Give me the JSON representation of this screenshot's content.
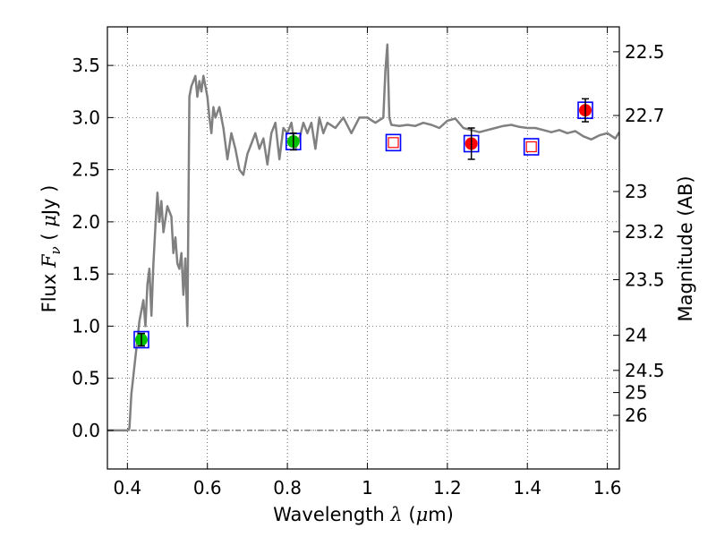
{
  "chart_data": {
    "type": "line",
    "title": "",
    "xlabel": {
      "prefix": "Wavelength ",
      "symbol": "λ",
      "unit_open": " (",
      "unit_symbol": "μ",
      "unit_rest": "m)"
    },
    "ylabel": {
      "prefix": "Flux ",
      "symbol": "F",
      "subscript": "ν",
      "unit_open": " ( ",
      "unit_symbol": "μ",
      "unit_rest": "Jy )"
    },
    "ylabel_right": "Magnitude (AB)",
    "xlim": [
      0.35,
      1.63
    ],
    "ylim": [
      -0.37,
      3.87
    ],
    "grid": true,
    "x_ticks": [
      {
        "value": 0.4,
        "label": "0.4"
      },
      {
        "value": 0.6,
        "label": "0.6"
      },
      {
        "value": 0.8,
        "label": "0.8"
      },
      {
        "value": 1.0,
        "label": "1"
      },
      {
        "value": 1.2,
        "label": "1.2"
      },
      {
        "value": 1.4,
        "label": "1.4"
      },
      {
        "value": 1.6,
        "label": "1.6"
      }
    ],
    "y_ticks": [
      {
        "value": 0.0,
        "label": "0.0"
      },
      {
        "value": 0.5,
        "label": "0.5"
      },
      {
        "value": 1.0,
        "label": "1.0"
      },
      {
        "value": 1.5,
        "label": "1.5"
      },
      {
        "value": 2.0,
        "label": "2.0"
      },
      {
        "value": 2.5,
        "label": "2.5"
      },
      {
        "value": 3.0,
        "label": "3.0"
      },
      {
        "value": 3.5,
        "label": "3.5"
      }
    ],
    "right_ticks": [
      {
        "value": 22.5,
        "label": "22.5"
      },
      {
        "value": 22.7,
        "label": "22.7"
      },
      {
        "value": 23,
        "label": "23"
      },
      {
        "value": 23.2,
        "label": "23.2"
      },
      {
        "value": 23.5,
        "label": "23.5"
      },
      {
        "value": 24,
        "label": "24"
      },
      {
        "value": 24.5,
        "label": "24.5"
      },
      {
        "value": 25,
        "label": "25"
      },
      {
        "value": 26,
        "label": "26"
      }
    ],
    "colors": {
      "spectrum": "#808080",
      "box": "#0000ff",
      "open_marker": "#ff0000",
      "filled_green": "#00c000",
      "filled_red": "#ff0000",
      "errorbar": "#000000"
    },
    "spectrum": {
      "x": [
        0.35,
        0.38,
        0.4,
        0.405,
        0.41,
        0.42,
        0.43,
        0.44,
        0.445,
        0.45,
        0.455,
        0.46,
        0.465,
        0.47,
        0.475,
        0.48,
        0.485,
        0.49,
        0.5,
        0.51,
        0.515,
        0.52,
        0.525,
        0.53,
        0.535,
        0.54,
        0.545,
        0.55,
        0.555,
        0.56,
        0.57,
        0.575,
        0.58,
        0.585,
        0.59,
        0.595,
        0.6,
        0.605,
        0.61,
        0.615,
        0.62,
        0.63,
        0.64,
        0.65,
        0.66,
        0.67,
        0.68,
        0.69,
        0.7,
        0.71,
        0.72,
        0.73,
        0.74,
        0.75,
        0.76,
        0.77,
        0.78,
        0.79,
        0.8,
        0.81,
        0.82,
        0.83,
        0.84,
        0.85,
        0.86,
        0.87,
        0.88,
        0.89,
        0.9,
        0.92,
        0.94,
        0.96,
        0.98,
        1.0,
        1.02,
        1.04,
        1.045,
        1.05,
        1.055,
        1.06,
        1.08,
        1.1,
        1.12,
        1.14,
        1.16,
        1.18,
        1.2,
        1.22,
        1.24,
        1.26,
        1.28,
        1.3,
        1.32,
        1.34,
        1.36,
        1.38,
        1.4,
        1.42,
        1.44,
        1.46,
        1.48,
        1.5,
        1.52,
        1.54,
        1.56,
        1.58,
        1.6,
        1.62,
        1.63
      ],
      "y": [
        0.0,
        0.0,
        0.0,
        0.02,
        0.35,
        0.7,
        1.05,
        1.25,
        1.0,
        1.4,
        1.55,
        1.1,
        1.6,
        1.95,
        2.28,
        2.0,
        2.2,
        1.9,
        2.15,
        2.05,
        1.7,
        1.85,
        1.6,
        1.55,
        1.7,
        1.3,
        1.65,
        1.0,
        3.2,
        3.3,
        3.4,
        3.2,
        3.35,
        3.25,
        3.4,
        3.3,
        3.2,
        3.0,
        2.85,
        3.1,
        3.0,
        3.1,
        2.9,
        2.6,
        2.85,
        2.7,
        2.5,
        2.45,
        2.65,
        2.75,
        2.85,
        2.7,
        2.8,
        2.55,
        2.85,
        2.95,
        2.6,
        2.9,
        2.85,
        2.95,
        2.7,
        2.8,
        2.95,
        2.85,
        2.95,
        2.7,
        3.0,
        2.85,
        2.95,
        2.9,
        3.0,
        2.85,
        3.0,
        3.0,
        2.95,
        3.0,
        3.45,
        3.7,
        3.0,
        2.93,
        2.92,
        2.93,
        2.92,
        2.95,
        2.93,
        2.9,
        2.97,
        2.99,
        2.9,
        2.88,
        2.86,
        2.88,
        2.9,
        2.92,
        2.93,
        2.91,
        2.9,
        2.9,
        2.88,
        2.86,
        2.88,
        2.85,
        2.87,
        2.82,
        2.79,
        2.83,
        2.85,
        2.8,
        2.86
      ]
    },
    "photometry": [
      {
        "x": 0.435,
        "y": 0.87,
        "err": 0.06,
        "box": true,
        "marker": "filled",
        "color": "#00c000"
      },
      {
        "x": 0.815,
        "y": 2.77,
        "err": 0.08,
        "box": true,
        "marker": "filled",
        "color": "#00c000"
      },
      {
        "x": 1.065,
        "y": 2.76,
        "err": 0.0,
        "box": true,
        "marker": "open",
        "color": "#ff0000"
      },
      {
        "x": 1.26,
        "y": 2.75,
        "err": 0.15,
        "box": true,
        "marker": "filled",
        "color": "#ff0000"
      },
      {
        "x": 1.41,
        "y": 2.72,
        "err": 0.0,
        "box": true,
        "marker": "open",
        "color": "#ff0000"
      },
      {
        "x": 1.545,
        "y": 3.07,
        "err": 0.11,
        "box": true,
        "marker": "filled",
        "color": "#ff0000"
      }
    ]
  }
}
